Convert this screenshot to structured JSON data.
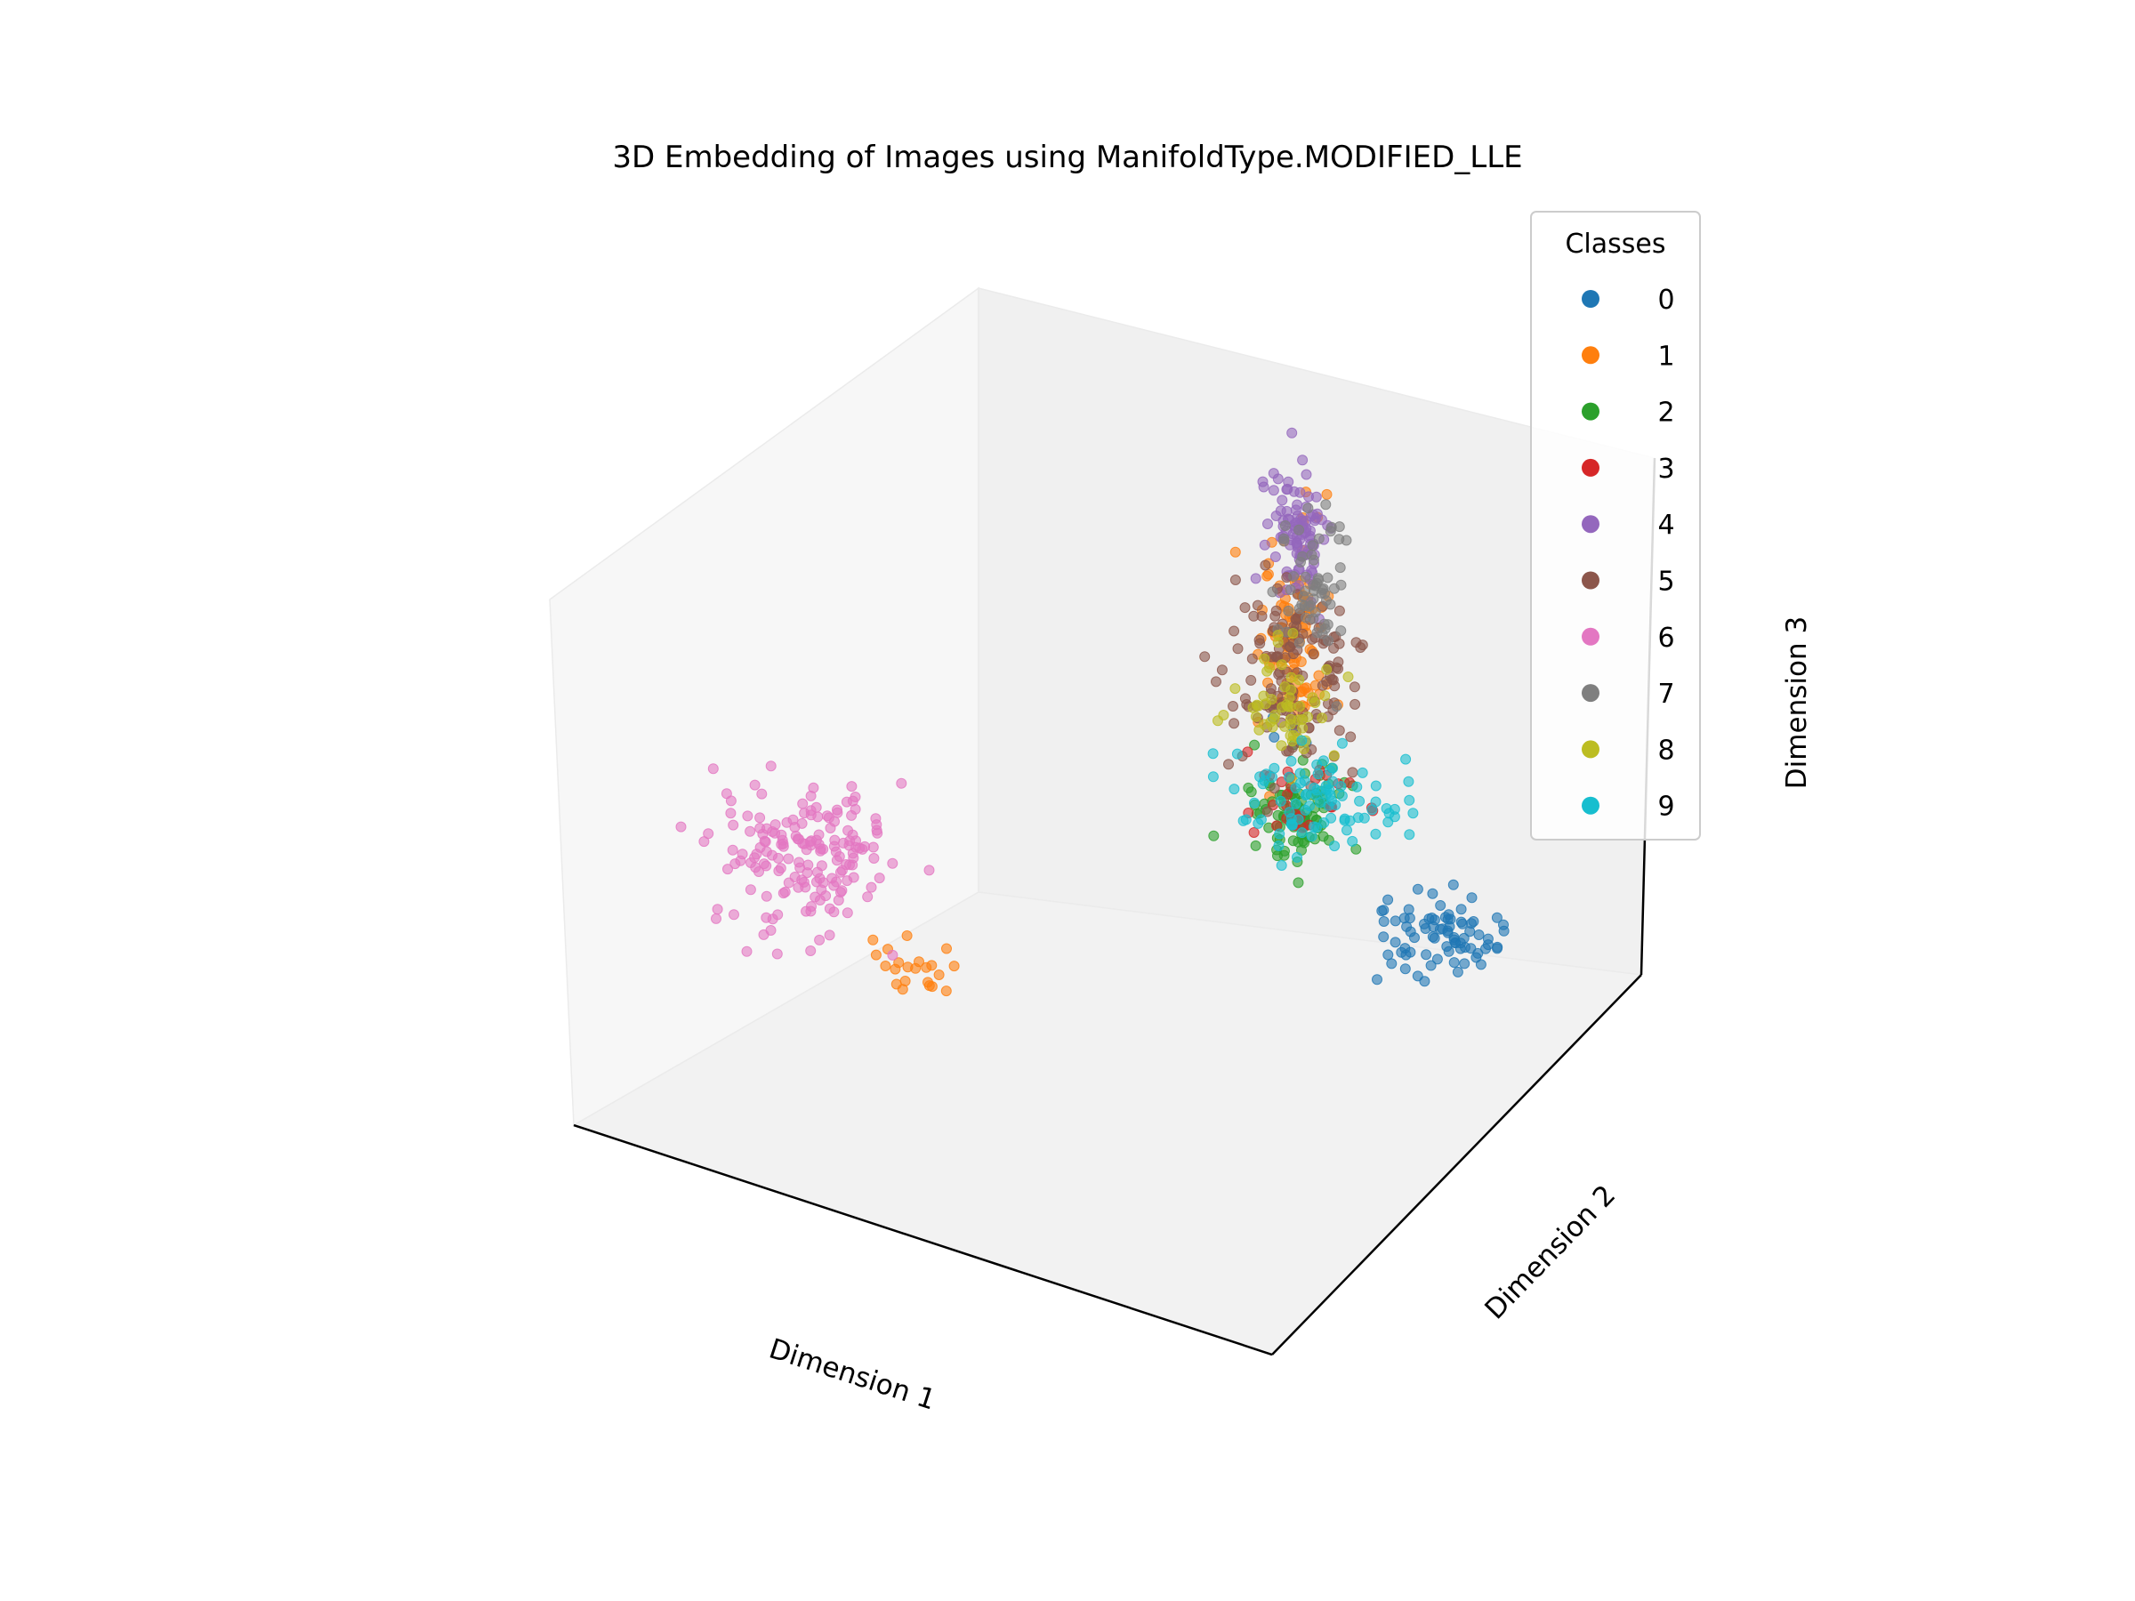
{
  "chart_data": {
    "type": "scatter",
    "projection": "3d",
    "title": "3D Embedding of Images using ManifoldType.MODIFIED_LLE",
    "xlabel": "Dimension 1",
    "ylabel": "Dimension 2",
    "zlabel": "Dimension 3",
    "ticks_visible": false,
    "grid": false,
    "legend": {
      "title": "Classes",
      "placement": "upper-right",
      "entries": [
        "0",
        "1",
        "2",
        "3",
        "4",
        "5",
        "6",
        "7",
        "8",
        "9"
      ]
    },
    "colors": [
      "#1f77b4",
      "#ff7f0e",
      "#2ca02c",
      "#d62728",
      "#9467bd",
      "#8c564b",
      "#e377c2",
      "#7f7f7f",
      "#bcbd22",
      "#17becf"
    ],
    "series": [
      {
        "name": "0",
        "clusters": [
          {
            "cx": 0.92,
            "cy": 0.55,
            "cz": 0.52,
            "sx": 0.04,
            "sy": 0.05,
            "sz": 0.025,
            "n": 80
          },
          {
            "cx": 0.62,
            "cy": 0.7,
            "cz": 0.7,
            "sx": 0.02,
            "sy": 0.02,
            "sz": 0.02,
            "n": 4
          }
        ]
      },
      {
        "name": "1",
        "clusters": [
          {
            "cx": 0.5,
            "cy": 0.92,
            "cz": 0.74,
            "sx": 0.02,
            "sy": 0.02,
            "sz": 0.1,
            "n": 110
          },
          {
            "cx": 0.38,
            "cy": 0.18,
            "cz": 0.38,
            "sx": 0.025,
            "sy": 0.03,
            "sz": 0.025,
            "n": 22
          }
        ]
      },
      {
        "name": "2",
        "clusters": [
          {
            "cx": 0.53,
            "cy": 0.86,
            "cz": 0.45,
            "sx": 0.03,
            "sy": 0.03,
            "sz": 0.05,
            "n": 90
          }
        ]
      },
      {
        "name": "3",
        "clusters": [
          {
            "cx": 0.58,
            "cy": 0.82,
            "cz": 0.52,
            "sx": 0.04,
            "sy": 0.04,
            "sz": 0.03,
            "n": 28
          }
        ]
      },
      {
        "name": "4",
        "clusters": [
          {
            "cx": 0.49,
            "cy": 0.94,
            "cz": 0.92,
            "sx": 0.02,
            "sy": 0.02,
            "sz": 0.06,
            "n": 100
          }
        ]
      },
      {
        "name": "5",
        "clusters": [
          {
            "cx": 0.52,
            "cy": 0.88,
            "cz": 0.68,
            "sx": 0.04,
            "sy": 0.04,
            "sz": 0.09,
            "n": 140
          }
        ]
      },
      {
        "name": "6",
        "clusters": [
          {
            "cx": 0.22,
            "cy": 0.2,
            "cz": 0.52,
            "sx": 0.05,
            "sy": 0.06,
            "sz": 0.06,
            "n": 170
          }
        ]
      },
      {
        "name": "7",
        "clusters": [
          {
            "cx": 0.52,
            "cy": 0.93,
            "cz": 0.85,
            "sx": 0.02,
            "sy": 0.02,
            "sz": 0.07,
            "n": 60
          }
        ]
      },
      {
        "name": "8",
        "clusters": [
          {
            "cx": 0.51,
            "cy": 0.88,
            "cz": 0.62,
            "sx": 0.03,
            "sy": 0.03,
            "sz": 0.05,
            "n": 55
          }
        ]
      },
      {
        "name": "9",
        "clusters": [
          {
            "cx": 0.6,
            "cy": 0.8,
            "cz": 0.52,
            "sx": 0.05,
            "sy": 0.05,
            "sz": 0.04,
            "n": 90
          }
        ]
      }
    ]
  }
}
